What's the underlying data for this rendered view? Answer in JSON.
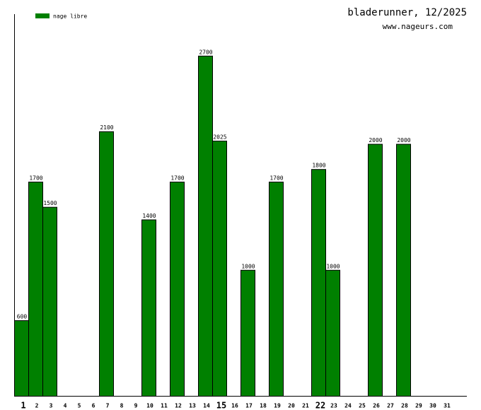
{
  "chart_data": {
    "type": "bar",
    "title": "bladerunner, 12/2025",
    "subtitle": "www.nageurs.com",
    "categories": [
      "1",
      "2",
      "3",
      "4",
      "5",
      "6",
      "7",
      "8",
      "9",
      "10",
      "11",
      "12",
      "13",
      "14",
      "15",
      "16",
      "17",
      "18",
      "19",
      "20",
      "21",
      "22",
      "23",
      "24",
      "25",
      "26",
      "27",
      "28",
      "29",
      "30",
      "31"
    ],
    "emphasized_categories": [
      "1",
      "15",
      "22"
    ],
    "series": [
      {
        "name": "nage libre",
        "color": "#008000",
        "values": [
          600,
          1700,
          1500,
          null,
          null,
          null,
          2100,
          null,
          null,
          1400,
          null,
          1700,
          null,
          2700,
          2025,
          null,
          1000,
          null,
          1700,
          null,
          null,
          1800,
          1000,
          null,
          null,
          2000,
          null,
          2000,
          null,
          null,
          null
        ]
      }
    ],
    "ylim": [
      0,
      3030
    ],
    "legend": "top-left"
  }
}
